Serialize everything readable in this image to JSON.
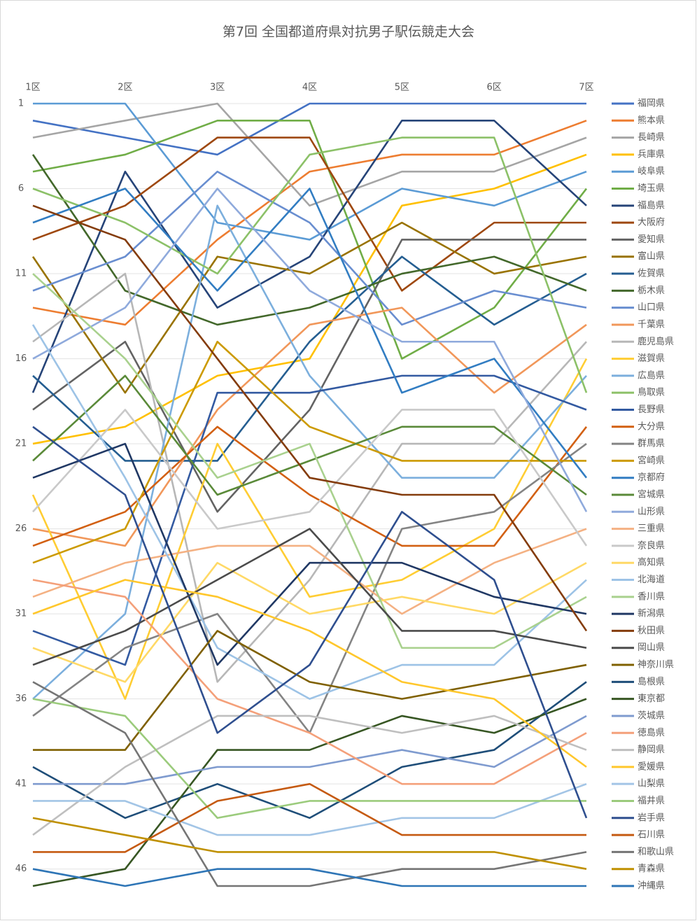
{
  "chart_data": {
    "type": "line",
    "title": "第7回 全国都道府県対抗男子駅伝競走大会",
    "categories": [
      "1区",
      "2区",
      "3区",
      "4区",
      "5区",
      "6区",
      "7区"
    ],
    "ylim": [
      47,
      1
    ],
    "yticks": [
      1,
      6,
      11,
      16,
      21,
      26,
      31,
      36,
      41,
      46
    ],
    "grid": true,
    "legend": "right",
    "series": [
      {
        "name": "福岡県",
        "color": "#4472C4",
        "values": [
          2,
          3,
          4,
          1,
          1,
          1,
          1
        ]
      },
      {
        "name": "熊本県",
        "color": "#ED7D31",
        "values": [
          13,
          14,
          9,
          5,
          4,
          4,
          2
        ]
      },
      {
        "name": "長崎県",
        "color": "#A5A5A5",
        "values": [
          3,
          2,
          1,
          7,
          5,
          5,
          3
        ]
      },
      {
        "name": "兵庫県",
        "color": "#FFC000",
        "values": [
          21,
          20,
          17,
          16,
          7,
          6,
          4
        ]
      },
      {
        "name": "岐阜県",
        "color": "#5B9BD5",
        "values": [
          1,
          1,
          8,
          9,
          6,
          7,
          5
        ]
      },
      {
        "name": "埼玉県",
        "color": "#70AD47",
        "values": [
          5,
          4,
          2,
          2,
          16,
          13,
          6
        ]
      },
      {
        "name": "福島県",
        "color": "#264478",
        "values": [
          18,
          5,
          13,
          10,
          2,
          2,
          7
        ]
      },
      {
        "name": "大阪府",
        "color": "#9E480E",
        "values": [
          9,
          7,
          3,
          3,
          12,
          8,
          8
        ]
      },
      {
        "name": "愛知県",
        "color": "#636363",
        "values": [
          19,
          15,
          25,
          19,
          9,
          9,
          9
        ]
      },
      {
        "name": "富山県",
        "color": "#997300",
        "values": [
          10,
          18,
          10,
          11,
          8,
          11,
          10
        ]
      },
      {
        "name": "佐賀県",
        "color": "#255E91",
        "values": [
          17,
          22,
          22,
          15,
          10,
          14,
          11
        ]
      },
      {
        "name": "栃木県",
        "color": "#43682B",
        "values": [
          4,
          12,
          14,
          13,
          11,
          10,
          12
        ]
      },
      {
        "name": "山口県",
        "color": "#698ED0",
        "values": [
          12,
          10,
          5,
          8,
          14,
          12,
          13
        ]
      },
      {
        "name": "千葉県",
        "color": "#F1975A",
        "values": [
          26,
          27,
          19,
          14,
          13,
          18,
          14
        ]
      },
      {
        "name": "鹿児島県",
        "color": "#B7B7B7",
        "values": [
          15,
          11,
          35,
          29,
          21,
          21,
          15
        ]
      },
      {
        "name": "滋賀県",
        "color": "#FFCD33",
        "values": [
          24,
          36,
          21,
          30,
          29,
          26,
          16
        ]
      },
      {
        "name": "広島県",
        "color": "#7CAFDD",
        "values": [
          36,
          31,
          7,
          17,
          23,
          23,
          17
        ]
      },
      {
        "name": "鳥取県",
        "color": "#8CC168",
        "values": [
          6,
          8,
          11,
          4,
          3,
          3,
          18
        ]
      },
      {
        "name": "長野県",
        "color": "#335AA1",
        "values": [
          32,
          34,
          18,
          18,
          17,
          17,
          19
        ]
      },
      {
        "name": "大分県",
        "color": "#D26012",
        "values": [
          27,
          25,
          20,
          24,
          27,
          27,
          20
        ]
      },
      {
        "name": "群馬県",
        "color": "#848484",
        "values": [
          37,
          33,
          31,
          38,
          26,
          25,
          21
        ]
      },
      {
        "name": "宮崎県",
        "color": "#CC9A00",
        "values": [
          28,
          26,
          15,
          20,
          22,
          22,
          22
        ]
      },
      {
        "name": "京都府",
        "color": "#327DC2",
        "values": [
          8,
          6,
          12,
          6,
          18,
          16,
          23
        ]
      },
      {
        "name": "宮城県",
        "color": "#5A8A39",
        "values": [
          22,
          17,
          24,
          22,
          20,
          20,
          24
        ]
      },
      {
        "name": "山形県",
        "color": "#8FAADC",
        "values": [
          16,
          13,
          6,
          12,
          15,
          15,
          25
        ]
      },
      {
        "name": "三重県",
        "color": "#F4B183",
        "values": [
          30,
          28,
          27,
          27,
          31,
          28,
          26
        ]
      },
      {
        "name": "奈良県",
        "color": "#C9C9C9",
        "values": [
          25,
          19,
          26,
          25,
          19,
          19,
          27
        ]
      },
      {
        "name": "高知県",
        "color": "#FFD966",
        "values": [
          33,
          35,
          28,
          31,
          30,
          31,
          28
        ]
      },
      {
        "name": "北海道",
        "color": "#9DC3E6",
        "values": [
          14,
          23,
          33,
          36,
          34,
          34,
          29
        ]
      },
      {
        "name": "香川県",
        "color": "#A9D18E",
        "values": [
          11,
          16,
          23,
          21,
          33,
          33,
          30
        ]
      },
      {
        "name": "新潟県",
        "color": "#203864",
        "values": [
          23,
          21,
          34,
          28,
          28,
          30,
          31
        ]
      },
      {
        "name": "秋田県",
        "color": "#843C0C",
        "values": [
          7,
          9,
          16,
          23,
          24,
          24,
          32
        ]
      },
      {
        "name": "岡山県",
        "color": "#4B4B4B",
        "values": [
          34,
          32,
          29,
          26,
          32,
          32,
          33
        ]
      },
      {
        "name": "神奈川県",
        "color": "#7F6000",
        "values": [
          39,
          39,
          32,
          35,
          36,
          35,
          34
        ]
      },
      {
        "name": "島根県",
        "color": "#1F4E79",
        "values": [
          40,
          43,
          41,
          43,
          40,
          39,
          35
        ]
      },
      {
        "name": "東京都",
        "color": "#375623",
        "values": [
          47,
          46,
          39,
          39,
          37,
          38,
          36
        ]
      },
      {
        "name": "茨城県",
        "color": "#7F9BCF",
        "values": [
          41,
          41,
          40,
          40,
          39,
          40,
          37
        ]
      },
      {
        "name": "徳島県",
        "color": "#F4A07A",
        "values": [
          29,
          30,
          36,
          38,
          41,
          41,
          38
        ]
      },
      {
        "name": "静岡県",
        "color": "#BFBFBF",
        "values": [
          44,
          40,
          37,
          37,
          38,
          37,
          39
        ]
      },
      {
        "name": "愛媛県",
        "color": "#FFC72C",
        "values": [
          31,
          29,
          30,
          32,
          35,
          36,
          40
        ]
      },
      {
        "name": "山梨県",
        "color": "#A3C5E6",
        "values": [
          42,
          42,
          44,
          44,
          43,
          43,
          41
        ]
      },
      {
        "name": "福井県",
        "color": "#9BCB7C",
        "values": [
          36,
          37,
          43,
          42,
          42,
          42,
          42
        ]
      },
      {
        "name": "岩手県",
        "color": "#2F4F8F",
        "values": [
          20,
          24,
          38,
          34,
          25,
          29,
          43
        ]
      },
      {
        "name": "石川県",
        "color": "#C55A11",
        "values": [
          45,
          45,
          42,
          41,
          44,
          44,
          44
        ]
      },
      {
        "name": "和歌山県",
        "color": "#757575",
        "values": [
          35,
          38,
          47,
          47,
          46,
          46,
          45
        ]
      },
      {
        "name": "青森県",
        "color": "#BF9000",
        "values": [
          43,
          44,
          45,
          45,
          45,
          45,
          46
        ]
      },
      {
        "name": "沖縄県",
        "color": "#2E75B6",
        "values": [
          46,
          47,
          46,
          46,
          47,
          47,
          47
        ]
      }
    ]
  }
}
